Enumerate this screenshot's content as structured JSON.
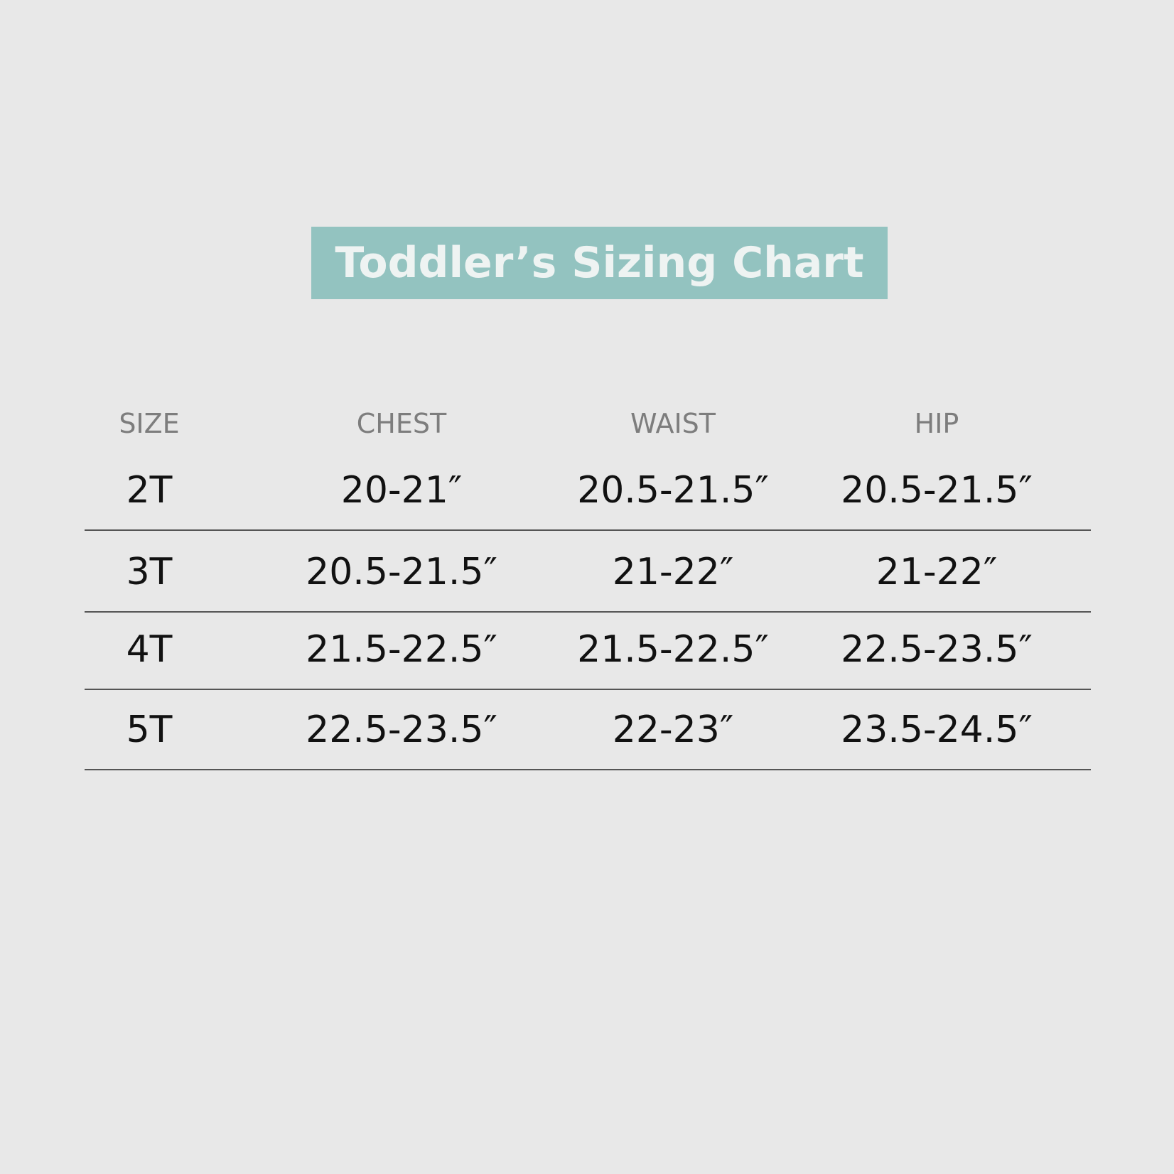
{
  "title": "Toddler’s Sizing Chart",
  "colors": {
    "title_background": "#93c3c0",
    "title_text": "#eef3f2",
    "background": "#e8e8e8"
  },
  "table": {
    "headers": [
      "SIZE",
      "CHEST",
      "WAIST",
      "HIP"
    ],
    "rows": [
      [
        "2T",
        "20-21″",
        "20.5-21.5″",
        "20.5-21.5″"
      ],
      [
        "3T",
        "20.5-21.5″",
        "21-22″",
        "21-22″"
      ],
      [
        "4T",
        "21.5-22.5″",
        "21.5-22.5″",
        "22.5-23.5″"
      ],
      [
        "5T",
        "22.5-23.5″",
        "22-23″",
        "23.5-24.5″"
      ]
    ]
  }
}
